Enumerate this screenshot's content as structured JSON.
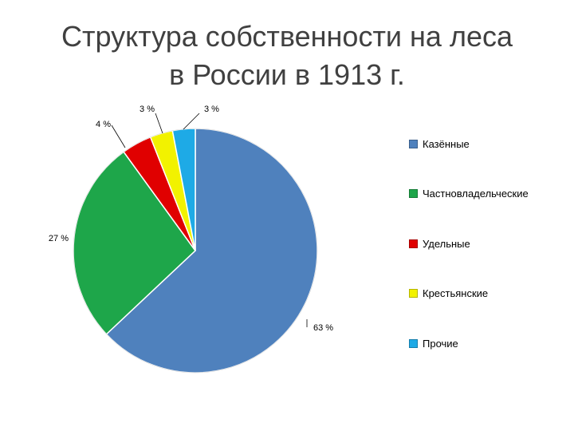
{
  "chart_data": {
    "type": "pie",
    "title_lines": [
      "Структура собственности на леса",
      "в России в 1913 г."
    ],
    "slices": [
      {
        "label": "Казённые",
        "value": 63,
        "value_label": "63 %",
        "color": "#4F81BD"
      },
      {
        "label": "Частновладельческие",
        "value": 27,
        "value_label": "27 %",
        "color": "#1EA64A"
      },
      {
        "label": "Удельные",
        "value": 4,
        "value_label": "4 %",
        "color": "#E00000"
      },
      {
        "label": "Крестьянские",
        "value": 3,
        "value_label": "3 %",
        "color": "#F2F200"
      },
      {
        "label": "Прочие",
        "value": 3,
        "value_label": "3 %",
        "color": "#1EAAE6"
      }
    ],
    "legend_position": "right"
  }
}
